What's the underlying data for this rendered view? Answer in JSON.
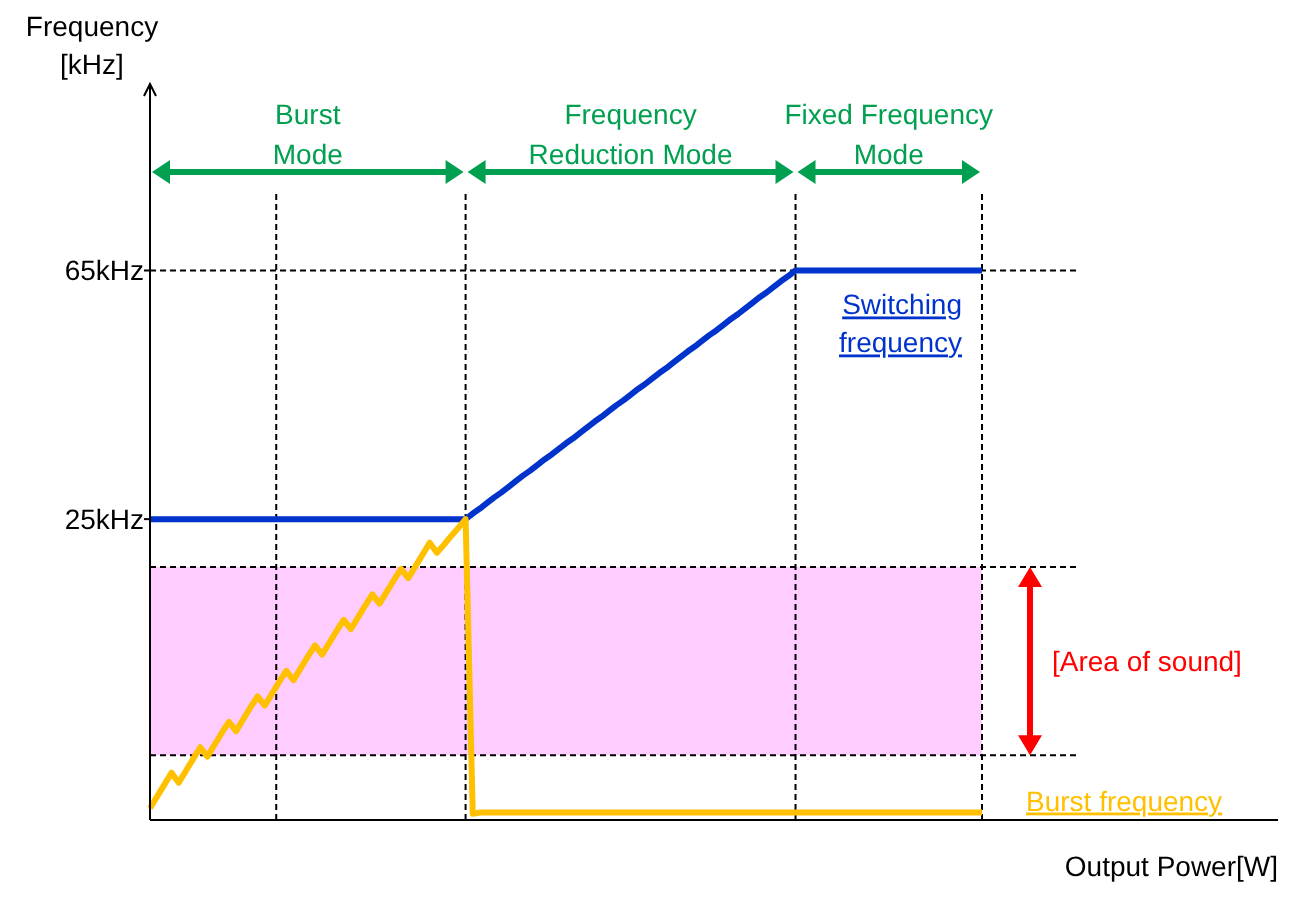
{
  "chart_data": {
    "type": "line",
    "xlabel": "Output Power[W]",
    "ylabel": "Frequency\n[kHz]",
    "categories": [
      null,
      null,
      null,
      null,
      null,
      null,
      null,
      null,
      null,
      null,
      null,
      null,
      null,
      null,
      null,
      null,
      null,
      null,
      null,
      null,
      null,
      null,
      null,
      null,
      null,
      null,
      null,
      null,
      null,
      null,
      null,
      null,
      null,
      null,
      null,
      null,
      null,
      null,
      null,
      null,
      null,
      null,
      null,
      null,
      null,
      null,
      null,
      null,
      null,
      null,
      null,
      null,
      null,
      null,
      null,
      null,
      null,
      null,
      null,
      null,
      null,
      null,
      null,
      null,
      null,
      null,
      null,
      null,
      null,
      null,
      null,
      null,
      null,
      null,
      null,
      null,
      null,
      null,
      null,
      null,
      null,
      null,
      null,
      null,
      null,
      null,
      null,
      null,
      null,
      null,
      null,
      null,
      null,
      null,
      null,
      null,
      null,
      null,
      null,
      null,
      null,
      null,
      null,
      null,
      null,
      null,
      null,
      null,
      null,
      null,
      null,
      null,
      null,
      null,
      null,
      null,
      null
    ],
    "ylim": [
      -23.4,
      95
    ],
    "yticks": [
      {
        "value": 25,
        "label": "25kHz"
      },
      {
        "value": 65,
        "label": "65kHz"
      }
    ],
    "tick_labels": "y",
    "grid": false,
    "line_style": "solid",
    "marker": "none",
    "series": [
      {
        "name": "Switching frequency",
        "color": "#0033cc",
        "values": [
          25,
          25,
          25,
          25,
          25,
          25,
          25,
          25,
          25,
          25,
          25,
          25,
          25,
          25,
          25,
          25,
          25,
          25,
          25,
          25,
          25,
          25,
          25,
          25,
          25,
          25,
          25,
          25,
          25,
          25,
          25,
          25,
          25,
          25,
          25,
          25,
          25,
          25,
          25,
          25,
          25,
          25,
          25,
          25,
          25,
          25.9,
          26.7,
          27.6,
          28.5,
          29.3,
          30.2,
          31.1,
          32.0,
          32.8,
          33.7,
          34.6,
          35.4,
          36.3,
          37.2,
          38.0,
          38.9,
          39.8,
          40.7,
          41.5,
          42.4,
          43.3,
          44.1,
          45.0,
          45.9,
          46.7,
          47.6,
          48.5,
          49.3,
          50.2,
          51.1,
          52.0,
          52.8,
          53.7,
          54.6,
          55.4,
          56.3,
          57.2,
          58.0,
          58.9,
          59.8,
          60.7,
          61.5,
          62.4,
          63.3,
          64.1,
          65,
          65,
          65,
          65,
          65,
          65,
          65,
          65,
          65,
          65,
          65,
          65,
          65,
          65,
          65,
          65,
          65,
          65,
          65,
          65,
          65,
          65,
          65,
          65,
          65,
          65,
          65
        ]
      },
      {
        "name": "Burst frequency",
        "color": "#ffc000",
        "values": [
          -21.5,
          -19.6,
          -17.7,
          -15.8,
          -17.4,
          -15.5,
          -13.6,
          -11.7,
          -13.2,
          -11.3,
          -9.4,
          -7.6,
          -9.1,
          -7.2,
          -5.3,
          -3.5,
          -5.0,
          -3.1,
          -1.2,
          0.6,
          -0.9,
          1.0,
          2.9,
          4.7,
          3.2,
          5.1,
          7.0,
          8.8,
          7.3,
          9.2,
          11.1,
          12.9,
          11.4,
          13.3,
          15.2,
          17.0,
          15.5,
          17.4,
          19.3,
          21.2,
          19.6,
          20.9,
          22.3,
          23.6,
          25,
          -22.4,
          -22.2,
          -22.2,
          -22.2,
          -22.2,
          -22.2,
          -22.2,
          -22.2,
          -22.2,
          -22.2,
          -22.2,
          -22.2,
          -22.2,
          -22.2,
          -22.2,
          -22.2,
          -22.2,
          -22.2,
          -22.2,
          -22.2,
          -22.2,
          -22.2,
          -22.2,
          -22.2,
          -22.2,
          -22.2,
          -22.2,
          -22.2,
          -22.2,
          -22.2,
          -22.2,
          -22.2,
          -22.2,
          -22.2,
          -22.2,
          -22.2,
          -22.2,
          -22.2,
          -22.2,
          -22.2,
          -22.2,
          -22.2,
          -22.2,
          -22.2,
          -22.2,
          -22.2,
          -22.2,
          -22.2,
          -22.2,
          -22.2,
          -22.2,
          -22.2,
          -22.2,
          -22.2,
          -22.2,
          -22.2,
          -22.2,
          -22.2,
          -22.2,
          -22.2,
          -22.2,
          -22.2,
          -22.2,
          -22.2,
          -22.2,
          -22.2,
          -22.2,
          -22.2,
          -22.2,
          -22.2,
          -22.2,
          -22.2
        ]
      }
    ],
    "ref_lines": [
      {
        "axis": "y",
        "value": 65
      }
    ],
    "bands": [
      {
        "axis": "y",
        "from": -13,
        "to": 17.3,
        "label": "[Area of sound]",
        "color": "#ffccff"
      }
    ],
    "annotations": [
      "Burst\nMode",
      "Frequency\nReduction Mode",
      "Fixed Frequency\nMode"
    ]
  }
}
